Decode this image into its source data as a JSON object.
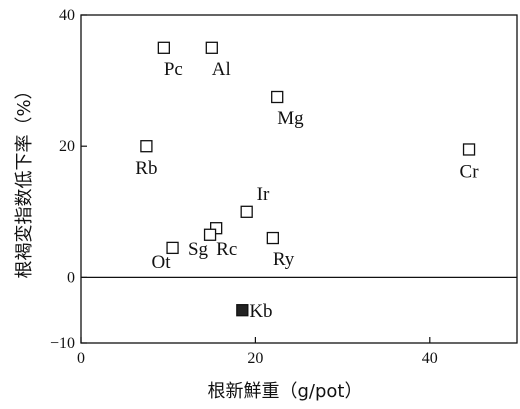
{
  "chart_data": {
    "type": "scatter",
    "title": "",
    "xlabel": "根新鮮重（g/pot）",
    "ylabel": "根褐変指数低下率（%）",
    "xlim": [
      0,
      50
    ],
    "ylim": [
      -10,
      40
    ],
    "xticks": [
      0,
      20,
      40
    ],
    "yticks": [
      -10,
      0,
      20,
      40
    ],
    "reference_line_y": 0,
    "grid": false,
    "points": [
      {
        "label": "Pc",
        "x": 9.5,
        "y": 35,
        "filled": false,
        "label_pos": "below-right"
      },
      {
        "label": "Al",
        "x": 15.0,
        "y": 35,
        "filled": false,
        "label_pos": "below-right"
      },
      {
        "label": "Mg",
        "x": 22.5,
        "y": 27.5,
        "filled": false,
        "label_pos": "below-right"
      },
      {
        "label": "Rb",
        "x": 7.5,
        "y": 20,
        "filled": false,
        "label_pos": "below"
      },
      {
        "label": "Cr",
        "x": 44.5,
        "y": 19.5,
        "filled": false,
        "label_pos": "below"
      },
      {
        "label": "Ir",
        "x": 19.0,
        "y": 10,
        "filled": false,
        "label_pos": "above-right"
      },
      {
        "label": "Rc",
        "x": 15.5,
        "y": 7.5,
        "filled": false,
        "label_pos": "below-right"
      },
      {
        "label": "Sg",
        "x": 14.8,
        "y": 6.5,
        "filled": false,
        "label_pos": "below-left"
      },
      {
        "label": "Ry",
        "x": 22.0,
        "y": 6,
        "filled": false,
        "label_pos": "below-right"
      },
      {
        "label": "Ot",
        "x": 10.5,
        "y": 4.5,
        "filled": false,
        "label_pos": "below-left"
      },
      {
        "label": "Kb",
        "x": 18.5,
        "y": -5,
        "filled": true,
        "label_pos": "right"
      }
    ]
  }
}
